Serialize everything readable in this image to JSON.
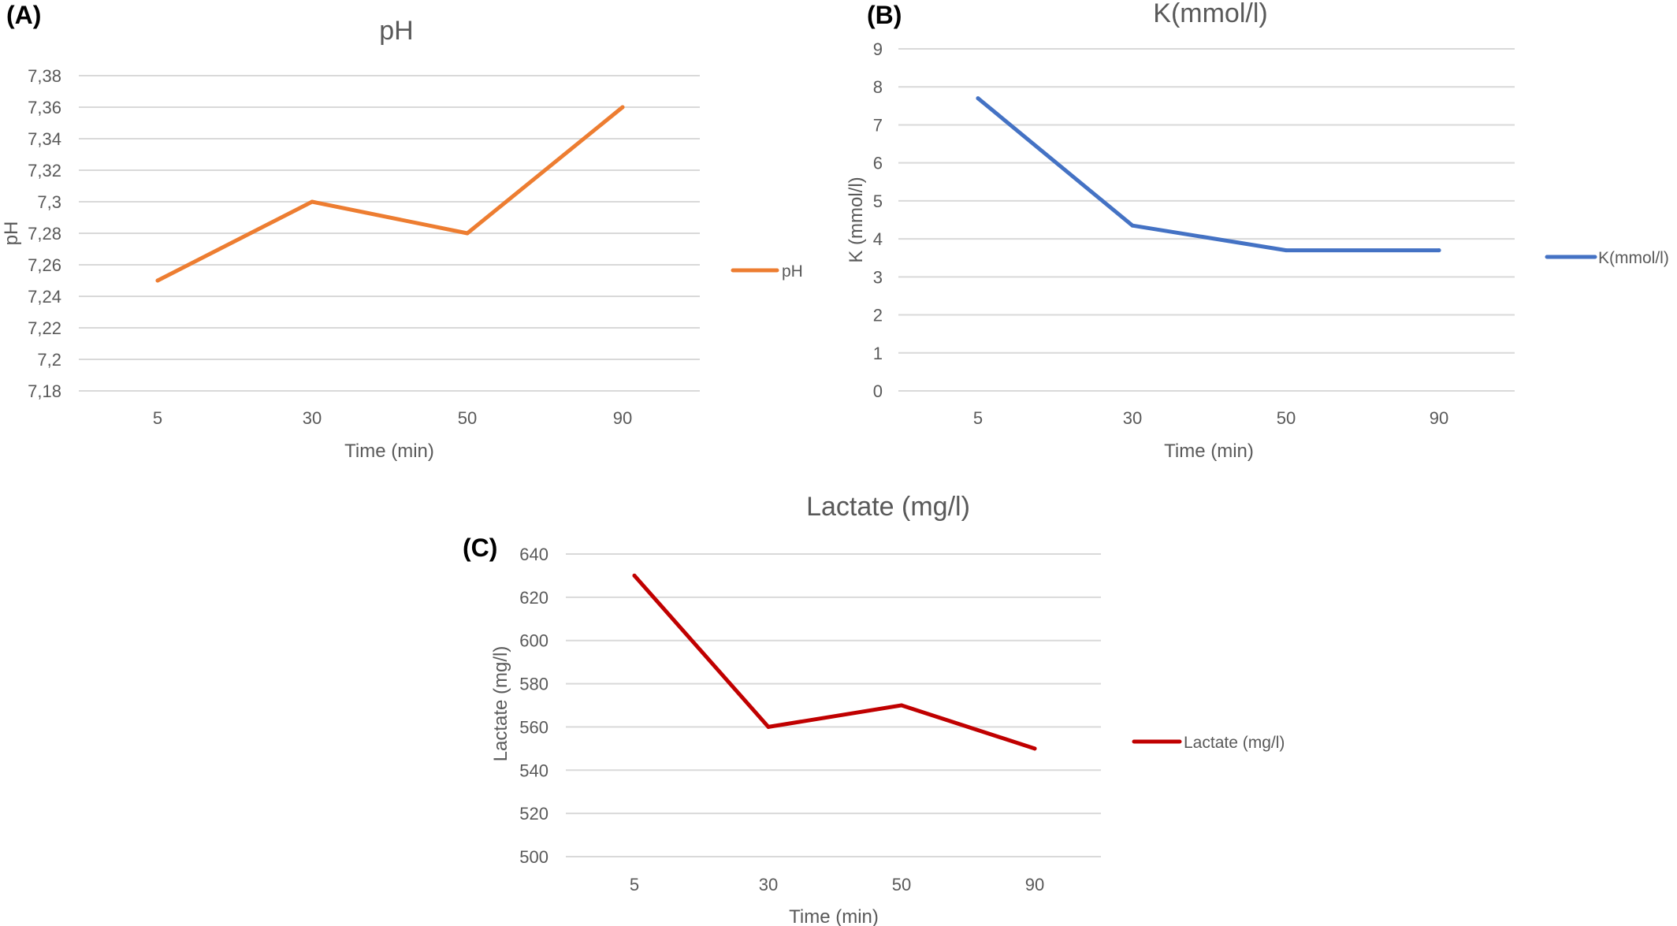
{
  "chart_data": [
    {
      "panel": "(A)",
      "type": "line",
      "title": "pH",
      "xlabel": "Time (min)",
      "ylabel": "pH",
      "categories": [
        "5",
        "30",
        "50",
        "90"
      ],
      "series": [
        {
          "name": "pH",
          "values": [
            7.25,
            7.3,
            7.28,
            7.36
          ],
          "color": "#ED7D31"
        }
      ],
      "ylim": [
        7.18,
        7.38
      ],
      "yticks": [
        "7,18",
        "7,2",
        "7,22",
        "7,24",
        "7,26",
        "7,28",
        "7,3",
        "7,32",
        "7,34",
        "7,36",
        "7,38"
      ],
      "grid": true,
      "legend": "right"
    },
    {
      "panel": "(B)",
      "type": "line",
      "title": "K(mmol/l)",
      "xlabel": "Time (min)",
      "ylabel": "K (mmol/l)",
      "categories": [
        "5",
        "30",
        "50",
        "90"
      ],
      "series": [
        {
          "name": "K(mmol/l)",
          "values": [
            7.7,
            4.35,
            3.7,
            3.7
          ],
          "color": "#4472C4"
        }
      ],
      "ylim": [
        0,
        9
      ],
      "yticks": [
        "0",
        "1",
        "2",
        "3",
        "4",
        "5",
        "6",
        "7",
        "8",
        "9"
      ],
      "grid": true,
      "legend": "right"
    },
    {
      "panel": "(C)",
      "type": "line",
      "title": "Lactate (mg/l)",
      "xlabel": "Time (min)",
      "ylabel": "Lactate (mg/l)",
      "categories": [
        "5",
        "30",
        "50",
        "90"
      ],
      "series": [
        {
          "name": "Lactate (mg/l)",
          "values": [
            630,
            560,
            570,
            550
          ],
          "color": "#C00000"
        }
      ],
      "ylim": [
        500,
        640
      ],
      "yticks": [
        "500",
        "520",
        "540",
        "560",
        "580",
        "600",
        "620",
        "640"
      ],
      "grid": true,
      "legend": "right"
    }
  ]
}
